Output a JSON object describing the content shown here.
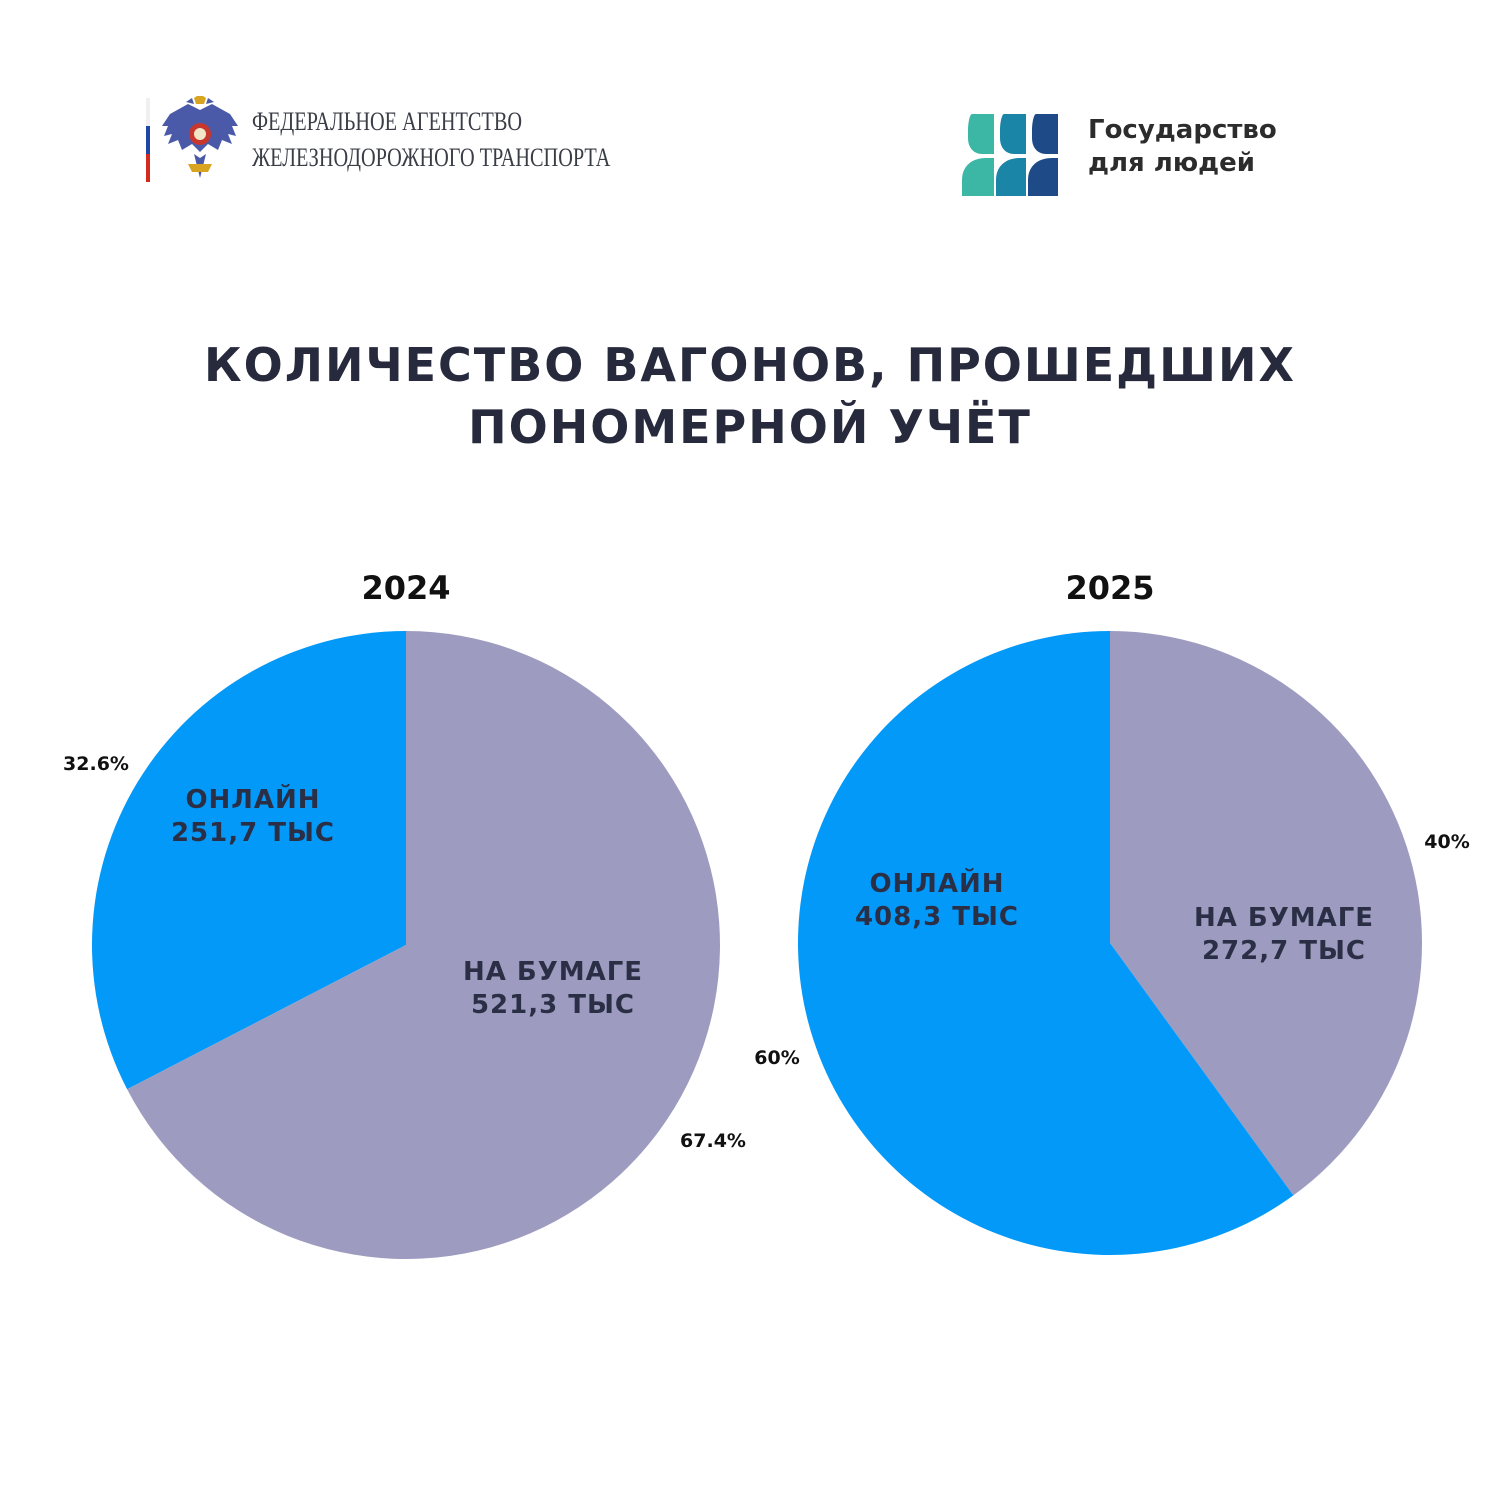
{
  "header": {
    "agency_line1": "Федеральное агентство",
    "agency_line2": "железнодорожного транспорта",
    "gov_line1": "Государство",
    "gov_line2": "для людей"
  },
  "colors": {
    "online": "#0399f9",
    "paper": "#9d9cc0",
    "title": "#272a3c",
    "flag_white": "#ffffff",
    "flag_blue": "#1f47a8",
    "flag_red": "#d52b1e",
    "logo_teal": "#3cb7a6",
    "logo_mid": "#1a85a6",
    "logo_navy": "#1e4b87"
  },
  "title": {
    "line1": "Количество вагонов, прошедших",
    "line2": "пономерной учёт"
  },
  "chart_data": [
    {
      "type": "pie",
      "title": "2024",
      "slices": [
        {
          "key": "online",
          "label": "ОНЛАЙН",
          "value_label": "251,7 ТЫС",
          "value": 251.7,
          "percent": 32.6,
          "percent_label": "32.6%"
        },
        {
          "key": "paper",
          "label": "НА БУМАГЕ",
          "value_label": "521,3 ТЫС",
          "value": 521.3,
          "percent": 67.4,
          "percent_label": "67.4%"
        }
      ]
    },
    {
      "type": "pie",
      "title": "2025",
      "slices": [
        {
          "key": "online",
          "label": "ОНЛАЙН",
          "value_label": "408,3 ТЫС",
          "value": 408.3,
          "percent": 60,
          "percent_label": "60%"
        },
        {
          "key": "paper",
          "label": "НА БУМАГЕ",
          "value_label": "272,7 ТЫС",
          "value": 272.7,
          "percent": 40,
          "percent_label": "40%"
        }
      ]
    }
  ]
}
